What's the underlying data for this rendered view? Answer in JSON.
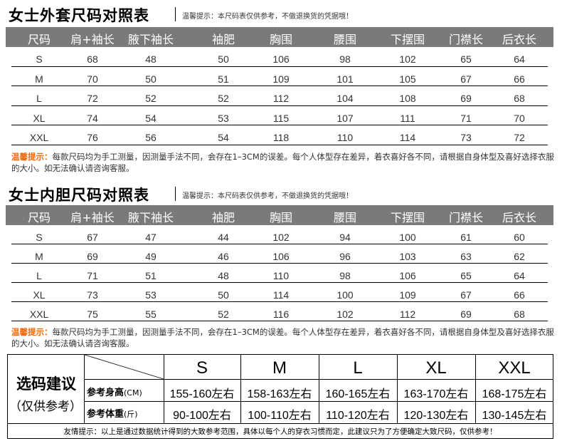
{
  "outer_table": {
    "title": "女士外套尺码对照表",
    "subnote": "温馨提示：本尺码表仅供参考，不做退换货的凭据哦！",
    "headers": [
      "尺码",
      "肩+袖长",
      "腋下袖长",
      "袖肥",
      "胸围",
      "腰围",
      "下摆围",
      "门襟长",
      "后衣长"
    ],
    "rows": [
      [
        "S",
        "68",
        "48",
        "50",
        "106",
        "98",
        "102",
        "65",
        "64"
      ],
      [
        "M",
        "70",
        "50",
        "51",
        "109",
        "101",
        "105",
        "67",
        "66"
      ],
      [
        "L",
        "72",
        "52",
        "52",
        "112",
        "104",
        "108",
        "69",
        "68"
      ],
      [
        "XL",
        "74",
        "54",
        "53",
        "115",
        "107",
        "111",
        "71",
        "70"
      ],
      [
        "XXL",
        "76",
        "56",
        "54",
        "118",
        "110",
        "114",
        "73",
        "72"
      ]
    ],
    "note_label": "温馨提示：",
    "note_text": "每款尺码均为手工测量，因测量手法不同，会存在1–3CM的误差。每个人体型存在差异，着衣喜好各不同，请根据自身体型及喜好选择衣服的大小。如无法确认请咨询客服。"
  },
  "inner_table": {
    "title": "女士内胆尺码对照表",
    "subnote": "温馨提示：本尺码表仅供参考，不做退换货的凭据哦！",
    "headers": [
      "尺码",
      "肩+袖长",
      "腋下袖长",
      "袖肥",
      "胸围",
      "腰围",
      "下摆围",
      "门襟长",
      "后衣长"
    ],
    "rows": [
      [
        "S",
        "67",
        "47",
        "44",
        "102",
        "94",
        "100",
        "61",
        "60"
      ],
      [
        "M",
        "69",
        "49",
        "46",
        "106",
        "96",
        "103",
        "63",
        "62"
      ],
      [
        "L",
        "71",
        "51",
        "48",
        "110",
        "98",
        "106",
        "65",
        "64"
      ],
      [
        "XL",
        "73",
        "53",
        "50",
        "114",
        "100",
        "109",
        "67",
        "66"
      ],
      [
        "XXL",
        "75",
        "55",
        "52",
        "116",
        "102",
        "112",
        "69",
        "68"
      ]
    ],
    "note_label": "温馨提示：",
    "note_text": "每款尺码均为手工测量，因测量手法不同，会存在1–3CM的误差。每个人体型存在差异，着衣喜好各不同，请根据自身体型及喜好选择衣服的大小。如无法确认请咨询客服。"
  },
  "recommendation": {
    "title": "选码建议",
    "subtitle": "（仅供参考）",
    "sizes": [
      "S",
      "M",
      "L",
      "XL",
      "XXL"
    ],
    "height_label": "参考身高",
    "height_unit": "(CM)",
    "heights": [
      "155-160左右",
      "158-163左右",
      "160-165左右",
      "163-170左右",
      "168-175左右"
    ],
    "weight_label": "参考体重",
    "weight_unit": "(斤)",
    "weights": [
      "90-100左右",
      "100-110左右",
      "110-120左右",
      "120-130左右",
      "130-145左右"
    ],
    "footnote": "友情提示：以上是通过数据统计得到的大致参考范围，具体以每个人的穿衣习惯而定，此建议只为了方便确定大致尺码，仅供参考！"
  },
  "colors": {
    "header_bg": "#7a7a7a",
    "note_label": "#f26b0f"
  }
}
